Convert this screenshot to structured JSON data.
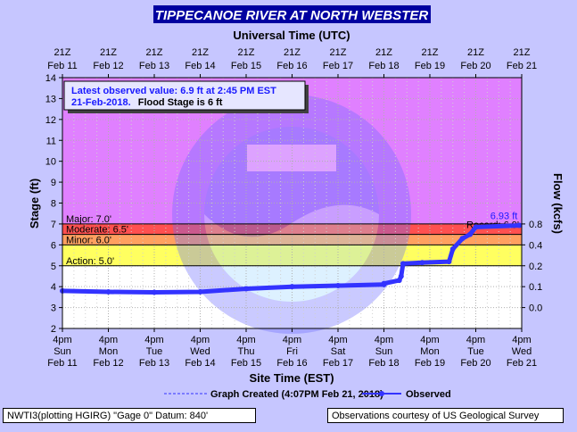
{
  "title": "TIPPECANOE RIVER AT NORTH WEBSTER",
  "top_axis_title": "Universal Time (UTC)",
  "bottom_axis_title": "Site Time (EST)",
  "y_left_label": "Stage (ft)",
  "y_right_label": "Flow (kcfs)",
  "info_box": {
    "line1": "Latest observed value: 6.9 ft at 2:45 PM EST",
    "line2_date": "21-Feb-2018.",
    "line2_flood": "Flood Stage is 6 ft"
  },
  "legend": {
    "created": "Graph Created (4:07PM Feb 21, 2018)",
    "observed": "Observed"
  },
  "footer": {
    "left": "NWTI3(plotting HGIRG) \"Gage 0\" Datum: 840'",
    "right": "Observations courtesy of US Geological Survey"
  },
  "colors": {
    "page_bg": "#c6c6ff",
    "title_bg": "#0000a0",
    "major_zone": "#e080ff",
    "moderate_zone": "#ff5050",
    "minor_zone": "#ffa060",
    "action_zone": "#ffff60",
    "normal_zone": "#ffffff",
    "observed_line": "#3333ff"
  },
  "chart_data": {
    "type": "line",
    "title": "TIPPECANOE RIVER AT NORTH WEBSTER",
    "xlabel": "Site Time (EST)",
    "ylabel": "Stage (ft)",
    "y2label": "Flow (kcfs)",
    "ylim": [
      2,
      14
    ],
    "grid": true,
    "x_ticks_top": [
      [
        "21Z",
        "Feb 11"
      ],
      [
        "21Z",
        "Feb 12"
      ],
      [
        "21Z",
        "Feb 13"
      ],
      [
        "21Z",
        "Feb 14"
      ],
      [
        "21Z",
        "Feb 15"
      ],
      [
        "21Z",
        "Feb 16"
      ],
      [
        "21Z",
        "Feb 17"
      ],
      [
        "21Z",
        "Feb 18"
      ],
      [
        "21Z",
        "Feb 19"
      ],
      [
        "21Z",
        "Feb 20"
      ],
      [
        "21Z",
        "Feb 21"
      ]
    ],
    "x_ticks_bottom": [
      [
        "4pm",
        "Sun",
        "Feb 11"
      ],
      [
        "4pm",
        "Mon",
        "Feb 12"
      ],
      [
        "4pm",
        "Tue",
        "Feb 13"
      ],
      [
        "4pm",
        "Wed",
        "Feb 14"
      ],
      [
        "4pm",
        "Thu",
        "Feb 15"
      ],
      [
        "4pm",
        "Fri",
        "Feb 16"
      ],
      [
        "4pm",
        "Sat",
        "Feb 17"
      ],
      [
        "4pm",
        "Sun",
        "Feb 18"
      ],
      [
        "4pm",
        "Mon",
        "Feb 19"
      ],
      [
        "4pm",
        "Tue",
        "Feb 20"
      ],
      [
        "4pm",
        "Wed",
        "Feb 21"
      ]
    ],
    "y_ticks": [
      2,
      3,
      4,
      5,
      6,
      7,
      8,
      9,
      10,
      11,
      12,
      13,
      14
    ],
    "y2_ticks": [
      {
        "stage": 3.0,
        "label": "0.0"
      },
      {
        "stage": 4.0,
        "label": "0.1"
      },
      {
        "stage": 5.0,
        "label": "0.2"
      },
      {
        "stage": 6.0,
        "label": "0.4"
      },
      {
        "stage": 7.0,
        "label": "0.8"
      }
    ],
    "thresholds": [
      {
        "name": "Major",
        "label": "Major: 7.0'",
        "value": 7.0
      },
      {
        "name": "Moderate",
        "label": "Moderate: 6.5'",
        "value": 6.5
      },
      {
        "name": "Minor",
        "label": "Minor: 6.0'",
        "value": 6.0
      },
      {
        "name": "Action",
        "label": "Action: 5.0'",
        "value": 5.0
      }
    ],
    "record_label": "Record: 6.9'",
    "latest_label": "6.93 ft",
    "series": [
      {
        "name": "Observed",
        "points": [
          [
            "2018-02-11",
            3.8
          ],
          [
            "2018-02-12",
            3.75
          ],
          [
            "2018-02-13",
            3.73
          ],
          [
            "2018-02-14",
            3.75
          ],
          [
            "2018-02-15",
            3.9
          ],
          [
            "2018-02-16",
            4.0
          ],
          [
            "2018-02-17",
            4.05
          ],
          [
            "2018-02-18",
            4.1
          ],
          [
            "2018-02-18 16:00",
            4.15
          ],
          [
            "2018-02-19 00:00",
            4.3
          ],
          [
            "2018-02-19 01:00",
            4.5
          ],
          [
            "2018-02-19 02:00",
            5.1
          ],
          [
            "2018-02-19 12:00",
            5.15
          ],
          [
            "2018-02-20 02:00",
            5.2
          ],
          [
            "2018-02-20 04:00",
            5.8
          ],
          [
            "2018-02-20 09:00",
            6.3
          ],
          [
            "2018-02-20 13:00",
            6.5
          ],
          [
            "2018-02-20 16:00",
            6.85
          ],
          [
            "2018-02-21 14:45",
            6.93
          ]
        ]
      }
    ]
  }
}
